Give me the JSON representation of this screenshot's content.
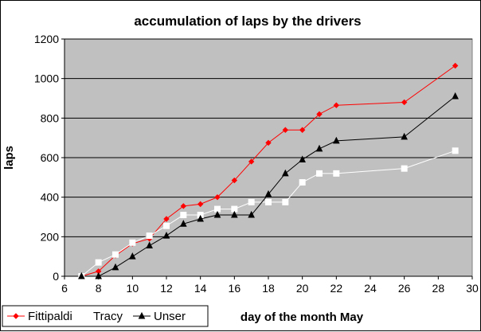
{
  "chart_data": {
    "type": "line",
    "title": "accumulation of laps by the drivers",
    "xlabel": "day of the month May",
    "ylabel": "laps",
    "xlim": [
      6,
      30
    ],
    "ylim": [
      0,
      1200
    ],
    "xticks": [
      6,
      8,
      10,
      12,
      14,
      16,
      18,
      20,
      22,
      24,
      26,
      28,
      30
    ],
    "yticks": [
      0,
      200,
      400,
      600,
      800,
      1000,
      1200
    ],
    "grid": "horizontal",
    "legend_position": "bottom-left",
    "plot_background": "#c0c0c0",
    "series": [
      {
        "name": "Fittipaldi",
        "color": "#ff0000",
        "marker": "diamond",
        "x": [
          7,
          8,
          9,
          10,
          11,
          12,
          13,
          14,
          15,
          16,
          17,
          18,
          19,
          20,
          21,
          22,
          26,
          29
        ],
        "y": [
          0,
          25,
          105,
          165,
          190,
          290,
          355,
          365,
          400,
          485,
          580,
          675,
          740,
          740,
          820,
          865,
          880,
          1065
        ]
      },
      {
        "name": "Tracy",
        "color": "#ffffff",
        "marker": "square",
        "x": [
          7,
          8,
          9,
          10,
          11,
          12,
          13,
          14,
          15,
          16,
          17,
          18,
          19,
          20,
          21,
          22,
          26,
          29
        ],
        "y": [
          0,
          70,
          110,
          170,
          205,
          255,
          310,
          310,
          340,
          340,
          375,
          375,
          375,
          475,
          520,
          520,
          545,
          635
        ]
      },
      {
        "name": "Unser",
        "color": "#000000",
        "marker": "triangle",
        "x": [
          7,
          8,
          9,
          10,
          11,
          12,
          13,
          14,
          15,
          16,
          17,
          18,
          19,
          20,
          21,
          22,
          26,
          29
        ],
        "y": [
          0,
          0,
          45,
          100,
          155,
          205,
          265,
          290,
          310,
          310,
          310,
          415,
          520,
          590,
          645,
          685,
          705,
          910
        ]
      }
    ]
  }
}
